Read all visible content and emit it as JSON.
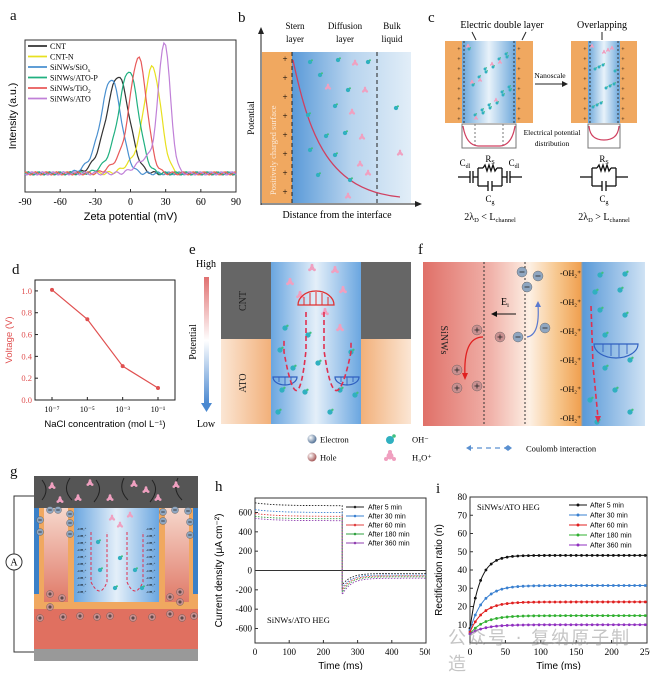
{
  "panels": {
    "a": "a",
    "b": "b",
    "c": "c",
    "d": "d",
    "e": "e",
    "f": "f",
    "g": "g",
    "h": "h",
    "i": "i"
  },
  "chart_data": [
    {
      "id": "a",
      "type": "line",
      "title": "",
      "xlabel": "Zeta potential (mV)",
      "ylabel": "Intensity (a.u.)",
      "xlim": [
        -90,
        90
      ],
      "xticks": [
        "-90",
        "-60",
        "-30",
        "0",
        "30",
        "60",
        "90"
      ],
      "legend_position": "top-left",
      "series": [
        {
          "name": "CNT",
          "color": "#333333",
          "peak": -10,
          "height": 0.72,
          "width": 9
        },
        {
          "name": "CNT-N",
          "color": "#e8e020",
          "peak": 19,
          "height": 0.79,
          "width": 7
        },
        {
          "name": "SiNWs/SiO",
          "sub": "x",
          "color": "#4a90d0",
          "peak": -16,
          "height": 0.7,
          "width": 8
        },
        {
          "name": "SiNWs/ATO-P",
          "color": "#20b080",
          "peak": -1,
          "height": 0.76,
          "width": 8
        },
        {
          "name": "SiNWs/TiO",
          "sub": "2",
          "color": "#e85a5a",
          "peak": 7,
          "height": 0.86,
          "width": 7
        },
        {
          "name": "SiNWs/ATO",
          "color": "#c080d8",
          "peak": 29,
          "height": 0.98,
          "width": 5
        }
      ]
    },
    {
      "id": "d",
      "type": "line",
      "xlabel": "NaCl concentration (mol L⁻¹)",
      "ylabel": "Voltage (V)",
      "categories": [
        "10⁻⁷",
        "10⁻⁵",
        "10⁻³",
        "10⁻¹"
      ],
      "values": [
        1.01,
        0.74,
        0.31,
        0.11
      ],
      "ylim": [
        0,
        1.1
      ],
      "yticks": [
        "0.0",
        "0.2",
        "0.4",
        "0.6",
        "0.8",
        "1.0"
      ],
      "color": "#e05050"
    },
    {
      "id": "h",
      "type": "line",
      "xlabel": "Time (ms)",
      "ylabel": "Current density (μA cm⁻²)",
      "annotation": "SiNWs/ATO HEG",
      "xlim": [
        0,
        500
      ],
      "ylim": [
        -750,
        750
      ],
      "xticks": [
        "0",
        "100",
        "200",
        "300",
        "400",
        "500"
      ],
      "yticks": [
        "-600",
        "-400",
        "-200",
        "0",
        "200",
        "400",
        "600"
      ],
      "legend_position": "top-right",
      "series": [
        {
          "name": "After 5 min",
          "color": "#222222",
          "on_start": 700,
          "on_end": 670,
          "off_start": -150,
          "off_end": -30
        },
        {
          "name": "After 30 min",
          "color": "#3a80d0",
          "on_start": 630,
          "on_end": 600,
          "off_start": -180,
          "off_end": -45
        },
        {
          "name": "After 60 min",
          "color": "#e04040",
          "on_start": 590,
          "on_end": 560,
          "off_start": -200,
          "off_end": -55
        },
        {
          "name": "After 180 min",
          "color": "#30a040",
          "on_start": 560,
          "on_end": 535,
          "off_start": -225,
          "off_end": -65
        },
        {
          "name": "After 360 min",
          "color": "#9040b0",
          "on_start": 540,
          "on_end": 515,
          "off_start": -250,
          "off_end": -80
        }
      ]
    },
    {
      "id": "i",
      "type": "line",
      "xlabel": "Time (ms)",
      "ylabel": "Rectification ratio (n)",
      "annotation": "SiNWs/ATO HEG",
      "xlim": [
        0,
        250
      ],
      "ylim": [
        0,
        80
      ],
      "xticks": [
        "0",
        "50",
        "100",
        "150",
        "200",
        "250"
      ],
      "yticks": [
        "10",
        "20",
        "30",
        "40",
        "50",
        "60",
        "70",
        "80"
      ],
      "legend_position": "top-right",
      "series": [
        {
          "name": "After 5 min",
          "color": "#111111",
          "start": 8,
          "plateau": 48,
          "tau": 14
        },
        {
          "name": "After 30 min",
          "color": "#3a80d0",
          "start": 7,
          "plateau": 31.5,
          "tau": 18
        },
        {
          "name": "After 60 min",
          "color": "#e02020",
          "start": 6,
          "plateau": 22.5,
          "tau": 18
        },
        {
          "name": "After 180 min",
          "color": "#30b030",
          "start": 5,
          "plateau": 15,
          "tau": 20
        },
        {
          "name": "After 360 min",
          "color": "#9030c0",
          "start": 5,
          "plateau": 10,
          "tau": 20
        }
      ]
    }
  ],
  "diagram_b": {
    "col_labels": [
      [
        "Stern",
        "layer"
      ],
      [
        "Diffusion",
        "layer"
      ],
      [
        "Bulk",
        "liquid"
      ]
    ],
    "surface_label": "Positively charged surface",
    "ylabel": "Potential",
    "xlabel": "Distance from the interface",
    "surface_sign": "+"
  },
  "diagram_c": {
    "left_title": "Electric double layer",
    "right_title": "Overlapping",
    "arrow_label": "Nanoscale",
    "potential_label_1": "Electrical potential",
    "potential_label_2": "distribution",
    "cdl": "C",
    "cdl_sub": "dl",
    "rs": "R",
    "rs_sub": "S",
    "cg": "C",
    "cg_sub": "g",
    "cond_left": "2λ",
    "cond_left_sub": "D",
    "cond_left_rel": " < L",
    "cond_sub2": "channel",
    "cond_right_rel": " > L"
  },
  "diagram_e": {
    "scale_high": "High",
    "scale_low": "Low",
    "scale_label": "Potential",
    "top_material": "CNT",
    "bottom_material": "ATO"
  },
  "diagram_f": {
    "material": "SiNWs",
    "field_label": "E",
    "field_sub": "i",
    "surface_group": "-OH₂⁺"
  },
  "legend_ef": {
    "electron": "Electron",
    "hole": "Hole",
    "oh": "OH⁻",
    "h3o": "H₃O⁺",
    "coulomb": "Coulomb interaction"
  },
  "diagram_g": {
    "ammeter": "A"
  },
  "watermark": "公众号 · 复纳原子制造"
}
